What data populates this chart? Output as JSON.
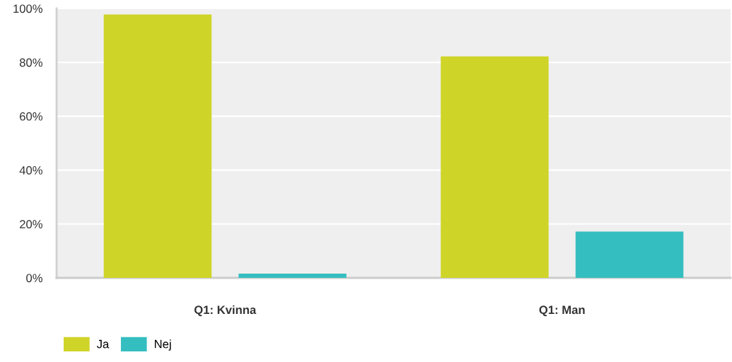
{
  "chart_data": {
    "type": "bar",
    "categories": [
      "Q1: Kvinna",
      "Q1: Man"
    ],
    "series": [
      {
        "name": "Ja",
        "color": "#cfd428",
        "values": [
          97.8,
          82.2
        ]
      },
      {
        "name": "Nej",
        "color": "#35bec0",
        "values": [
          1.6,
          17.2
        ]
      }
    ],
    "ylim": [
      0,
      100
    ],
    "yticks": [
      {
        "value": 0,
        "label": "0%"
      },
      {
        "value": 20,
        "label": "20%"
      },
      {
        "value": 40,
        "label": "40%"
      },
      {
        "value": 60,
        "label": "60%"
      },
      {
        "value": 80,
        "label": "80%"
      },
      {
        "value": 100,
        "label": "100%"
      }
    ],
    "grid": "y",
    "legend": "bottom left"
  }
}
